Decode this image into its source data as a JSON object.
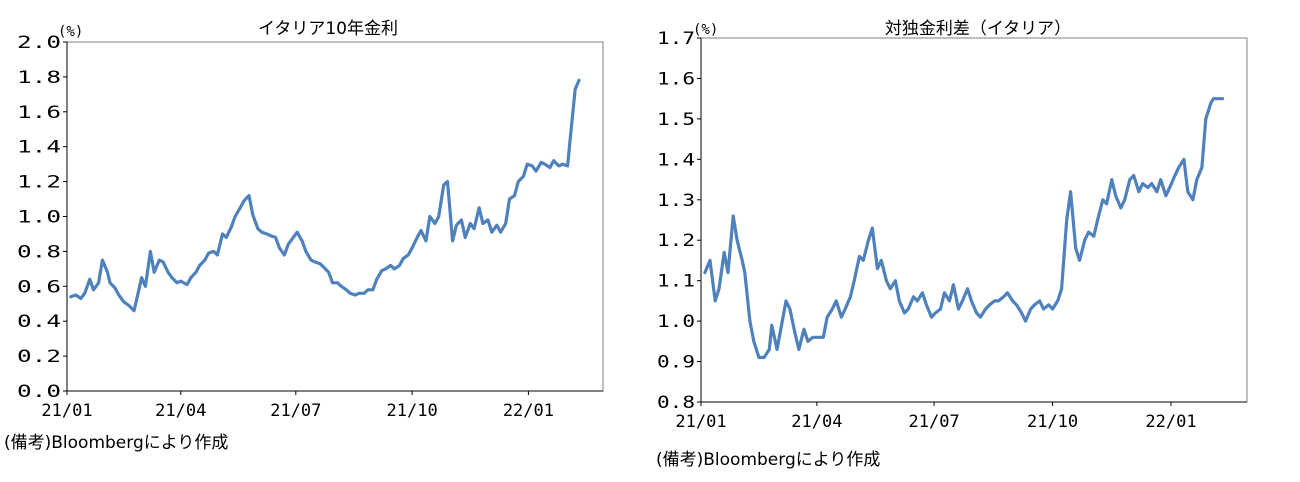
{
  "chart_data": [
    {
      "type": "line",
      "title": "イタリア10年金利",
      "unit_label": "(%)",
      "source": "(備考)Bloombergにより作成",
      "ylim": [
        0.0,
        2.0
      ],
      "yticks": [
        "0.0",
        "0.2",
        "0.4",
        "0.6",
        "0.8",
        "1.0",
        "1.2",
        "1.4",
        "1.6",
        "1.8",
        "2.0"
      ],
      "xlim": [
        "2021-01-01",
        "2022-03-01"
      ],
      "xticks": [
        "21/01",
        "21/04",
        "21/07",
        "21/10",
        "22/01"
      ],
      "grid": false,
      "color": "#4F81BD",
      "series": [
        {
          "x": [
            "2021-01-04",
            "2021-01-08",
            "2021-01-12",
            "2021-01-15",
            "2021-01-19",
            "2021-01-22",
            "2021-01-26",
            "2021-01-29",
            "2021-02-02",
            "2021-02-04",
            "2021-02-08",
            "2021-02-11",
            "2021-02-15",
            "2021-02-19",
            "2021-02-23",
            "2021-02-25",
            "2021-03-01",
            "2021-03-04",
            "2021-03-08",
            "2021-03-11",
            "2021-03-15",
            "2021-03-18",
            "2021-03-22",
            "2021-03-25",
            "2021-03-29",
            "2021-04-01",
            "2021-04-06",
            "2021-04-09",
            "2021-04-13",
            "2021-04-16",
            "2021-04-20",
            "2021-04-23",
            "2021-04-27",
            "2021-04-30",
            "2021-05-04",
            "2021-05-07",
            "2021-05-11",
            "2021-05-14",
            "2021-05-18",
            "2021-05-21",
            "2021-05-25",
            "2021-05-28",
            "2021-06-01",
            "2021-06-04",
            "2021-06-08",
            "2021-06-11",
            "2021-06-15",
            "2021-06-18",
            "2021-06-22",
            "2021-06-25",
            "2021-06-29",
            "2021-07-02",
            "2021-07-06",
            "2021-07-09",
            "2021-07-13",
            "2021-07-16",
            "2021-07-20",
            "2021-07-23",
            "2021-07-27",
            "2021-07-30",
            "2021-08-03",
            "2021-08-06",
            "2021-08-10",
            "2021-08-13",
            "2021-08-17",
            "2021-08-20",
            "2021-08-24",
            "2021-08-27",
            "2021-08-31",
            "2021-09-03",
            "2021-09-07",
            "2021-09-10",
            "2021-09-14",
            "2021-09-17",
            "2021-09-21",
            "2021-09-24",
            "2021-09-28",
            "2021-10-01",
            "2021-10-05",
            "2021-10-08",
            "2021-10-12",
            "2021-10-15",
            "2021-10-19",
            "2021-10-22",
            "2021-10-26",
            "2021-10-29",
            "2021-11-02",
            "2021-11-05",
            "2021-11-09",
            "2021-11-12",
            "2021-11-16",
            "2021-11-19",
            "2021-11-23",
            "2021-11-26",
            "2021-11-30",
            "2021-12-03",
            "2021-12-07",
            "2021-12-10",
            "2021-12-14",
            "2021-12-17",
            "2021-12-21",
            "2021-12-24",
            "2021-12-28",
            "2021-12-31",
            "2022-01-04",
            "2022-01-07",
            "2022-01-11",
            "2022-01-14",
            "2022-01-18",
            "2022-01-21",
            "2022-01-25",
            "2022-01-28",
            "2022-02-01",
            "2022-02-03",
            "2022-02-07",
            "2022-02-10"
          ],
          "y": [
            0.54,
            0.55,
            0.53,
            0.56,
            0.64,
            0.58,
            0.62,
            0.75,
            0.68,
            0.62,
            0.59,
            0.55,
            0.51,
            0.49,
            0.46,
            0.52,
            0.65,
            0.6,
            0.8,
            0.68,
            0.75,
            0.74,
            0.68,
            0.65,
            0.62,
            0.63,
            0.61,
            0.65,
            0.68,
            0.72,
            0.75,
            0.79,
            0.8,
            0.78,
            0.9,
            0.88,
            0.94,
            1.0,
            1.05,
            1.09,
            1.12,
            1.01,
            0.93,
            0.91,
            0.9,
            0.89,
            0.88,
            0.82,
            0.78,
            0.84,
            0.88,
            0.91,
            0.86,
            0.8,
            0.75,
            0.74,
            0.73,
            0.71,
            0.68,
            0.62,
            0.62,
            0.6,
            0.58,
            0.56,
            0.55,
            0.56,
            0.56,
            0.58,
            0.58,
            0.64,
            0.69,
            0.7,
            0.72,
            0.7,
            0.72,
            0.76,
            0.78,
            0.82,
            0.88,
            0.92,
            0.86,
            1.0,
            0.96,
            1.0,
            1.18,
            1.2,
            0.86,
            0.95,
            0.98,
            0.88,
            0.96,
            0.93,
            1.05,
            0.96,
            0.98,
            0.91,
            0.95,
            0.91,
            0.96,
            1.1,
            1.12,
            1.2,
            1.23,
            1.3,
            1.29,
            1.26,
            1.31,
            1.3,
            1.28,
            1.32,
            1.29,
            1.3,
            1.29,
            1.44,
            1.73,
            1.78
          ]
        }
      ]
    },
    {
      "type": "line",
      "title": "対独金利差（イタリア）",
      "unit_label": "(%)",
      "source": "(備考)Bloombergにより作成",
      "ylim": [
        0.8,
        1.7
      ],
      "yticks": [
        "0.8",
        "0.9",
        "1.0",
        "1.1",
        "1.2",
        "1.3",
        "1.4",
        "1.5",
        "1.6",
        "1.7"
      ],
      "xlim": [
        "2021-01-01",
        "2022-03-01"
      ],
      "xticks": [
        "21/01",
        "21/04",
        "21/07",
        "21/10",
        "22/01"
      ],
      "grid": false,
      "color": "#4F81BD",
      "series": [
        {
          "x": [
            "2021-01-04",
            "2021-01-08",
            "2021-01-12",
            "2021-01-15",
            "2021-01-19",
            "2021-01-22",
            "2021-01-26",
            "2021-01-29",
            "2021-02-02",
            "2021-02-04",
            "2021-02-08",
            "2021-02-11",
            "2021-02-15",
            "2021-02-19",
            "2021-02-23",
            "2021-02-25",
            "2021-03-01",
            "2021-03-04",
            "2021-03-08",
            "2021-03-11",
            "2021-03-15",
            "2021-03-18",
            "2021-03-22",
            "2021-03-25",
            "2021-03-29",
            "2021-04-01",
            "2021-04-06",
            "2021-04-09",
            "2021-04-13",
            "2021-04-16",
            "2021-04-20",
            "2021-04-23",
            "2021-04-27",
            "2021-04-30",
            "2021-05-04",
            "2021-05-07",
            "2021-05-11",
            "2021-05-14",
            "2021-05-18",
            "2021-05-21",
            "2021-05-25",
            "2021-05-28",
            "2021-06-01",
            "2021-06-04",
            "2021-06-08",
            "2021-06-11",
            "2021-06-15",
            "2021-06-18",
            "2021-06-22",
            "2021-06-25",
            "2021-06-29",
            "2021-07-02",
            "2021-07-06",
            "2021-07-09",
            "2021-07-13",
            "2021-07-16",
            "2021-07-20",
            "2021-07-23",
            "2021-07-27",
            "2021-07-30",
            "2021-08-03",
            "2021-08-06",
            "2021-08-10",
            "2021-08-13",
            "2021-08-17",
            "2021-08-20",
            "2021-08-24",
            "2021-08-27",
            "2021-08-31",
            "2021-09-03",
            "2021-09-07",
            "2021-09-10",
            "2021-09-14",
            "2021-09-17",
            "2021-09-21",
            "2021-09-24",
            "2021-09-28",
            "2021-10-01",
            "2021-10-05",
            "2021-10-08",
            "2021-10-12",
            "2021-10-15",
            "2021-10-19",
            "2021-10-22",
            "2021-10-26",
            "2021-10-29",
            "2021-11-02",
            "2021-11-05",
            "2021-11-09",
            "2021-11-12",
            "2021-11-16",
            "2021-11-19",
            "2021-11-23",
            "2021-11-26",
            "2021-11-30",
            "2021-12-03",
            "2021-12-07",
            "2021-12-10",
            "2021-12-14",
            "2021-12-17",
            "2021-12-21",
            "2021-12-24",
            "2021-12-28",
            "2021-12-31",
            "2022-01-04",
            "2022-01-07",
            "2022-01-11",
            "2022-01-14",
            "2022-01-18",
            "2022-01-21",
            "2022-01-25",
            "2022-01-28",
            "2022-02-01",
            "2022-02-03",
            "2022-02-07",
            "2022-02-10"
          ],
          "y": [
            1.12,
            1.15,
            1.05,
            1.08,
            1.17,
            1.12,
            1.26,
            1.2,
            1.15,
            1.12,
            1.0,
            0.95,
            0.91,
            0.91,
            0.93,
            0.99,
            0.93,
            0.98,
            1.05,
            1.03,
            0.97,
            0.93,
            0.98,
            0.95,
            0.96,
            0.96,
            0.96,
            1.01,
            1.03,
            1.05,
            1.01,
            1.03,
            1.06,
            1.1,
            1.16,
            1.15,
            1.2,
            1.23,
            1.13,
            1.15,
            1.1,
            1.08,
            1.1,
            1.05,
            1.02,
            1.03,
            1.06,
            1.05,
            1.07,
            1.04,
            1.01,
            1.02,
            1.03,
            1.07,
            1.05,
            1.09,
            1.03,
            1.05,
            1.08,
            1.05,
            1.02,
            1.01,
            1.03,
            1.04,
            1.05,
            1.05,
            1.06,
            1.07,
            1.05,
            1.04,
            1.02,
            1.0,
            1.03,
            1.04,
            1.05,
            1.03,
            1.04,
            1.03,
            1.05,
            1.08,
            1.25,
            1.32,
            1.18,
            1.15,
            1.2,
            1.22,
            1.21,
            1.25,
            1.3,
            1.29,
            1.35,
            1.31,
            1.28,
            1.3,
            1.35,
            1.36,
            1.32,
            1.34,
            1.33,
            1.34,
            1.32,
            1.35,
            1.31,
            1.33,
            1.36,
            1.38,
            1.4,
            1.32,
            1.3,
            1.35,
            1.38,
            1.5,
            1.54,
            1.55,
            1.55,
            1.55
          ]
        }
      ]
    }
  ]
}
